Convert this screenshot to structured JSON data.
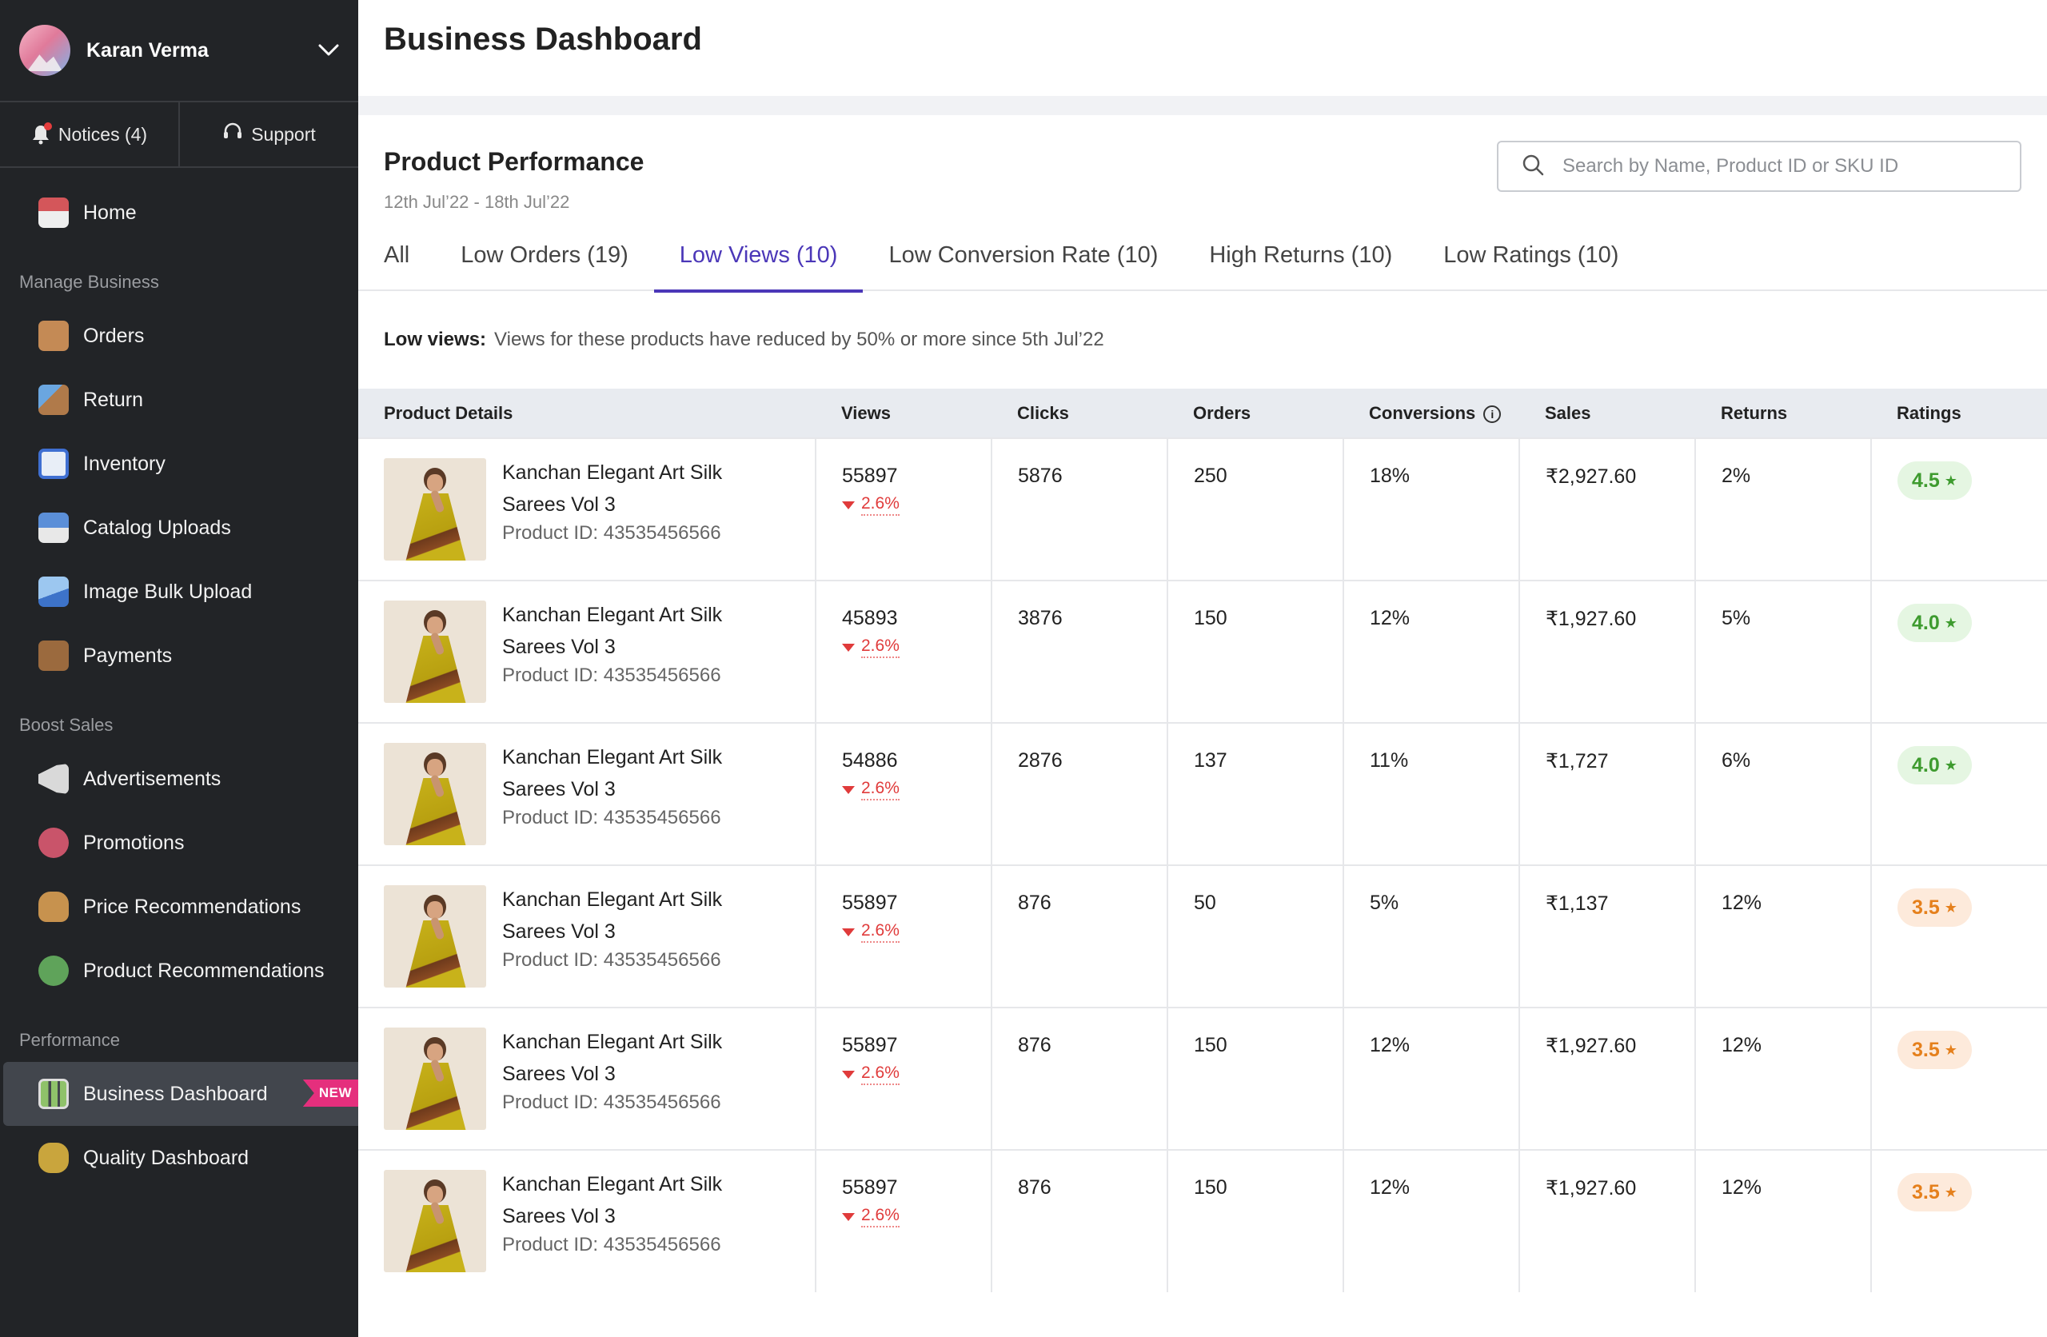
{
  "user": {
    "name": "Karan Verma"
  },
  "quick": {
    "notices": "Notices (4)",
    "support": "Support"
  },
  "nav": {
    "home": "Home",
    "section_manage": "Manage Business",
    "orders": "Orders",
    "return": "Return",
    "inventory": "Inventory",
    "catalog_uploads": "Catalog Uploads",
    "image_bulk_upload": "Image Bulk Upload",
    "payments": "Payments",
    "section_boost": "Boost Sales",
    "advertisements": "Advertisements",
    "promotions": "Promotions",
    "price_recommendations": "Price Recommendations",
    "product_recommendations": "Product Recommendations",
    "section_performance": "Performance",
    "business_dashboard": "Business Dashboard",
    "new_badge": "NEW",
    "quality_dashboard": "Quality Dashboard"
  },
  "page": {
    "title": "Business Dashboard"
  },
  "performance": {
    "title": "Product Performance",
    "date_range": "12th Jul’22 - 18th Jul’22",
    "search_placeholder": "Search by Name, Product ID or SKU ID"
  },
  "tabs": [
    "All",
    "Low Orders (19)",
    "Low Views (10)",
    "Low Conversion Rate (10)",
    "High Returns (10)",
    "Low Ratings (10)"
  ],
  "active_tab": "Low Views (10)",
  "note": {
    "label": "Low views:",
    "text": "Views for these products have reduced by 50% or more since 5th Jul’22"
  },
  "table": {
    "headers": [
      "Product Details",
      "Views",
      "Clicks",
      "Orders",
      "Conversions",
      "Sales",
      "Returns",
      "Ratings"
    ],
    "rows": [
      {
        "name": "Kanchan Elegant Art Silk Sarees Vol 3",
        "product_id": "Product ID: 43535456566",
        "views": "55897",
        "views_delta": "2.6%",
        "clicks": "5876",
        "orders": "250",
        "conversions": "18%",
        "sales": "₹2,927.60",
        "returns": "2%",
        "rating": "4.5",
        "rating_level": "good"
      },
      {
        "name": "Kanchan Elegant Art Silk Sarees Vol 3",
        "product_id": "Product ID: 43535456566",
        "views": "45893",
        "views_delta": "2.6%",
        "clicks": "3876",
        "orders": "150",
        "conversions": "12%",
        "sales": "₹1,927.60",
        "returns": "5%",
        "rating": "4.0",
        "rating_level": "good"
      },
      {
        "name": "Kanchan Elegant Art Silk Sarees Vol 3",
        "product_id": "Product ID: 43535456566",
        "views": "54886",
        "views_delta": "2.6%",
        "clicks": "2876",
        "orders": "137",
        "conversions": "11%",
        "sales": "₹1,727",
        "returns": "6%",
        "rating": "4.0",
        "rating_level": "good"
      },
      {
        "name": "Kanchan Elegant Art Silk Sarees Vol 3",
        "product_id": "Product ID: 43535456566",
        "views": "55897",
        "views_delta": "2.6%",
        "clicks": "876",
        "orders": "50",
        "conversions": "5%",
        "sales": "₹1,137",
        "returns": "12%",
        "rating": "3.5",
        "rating_level": "mid"
      },
      {
        "name": "Kanchan Elegant Art Silk Sarees Vol 3",
        "product_id": "Product ID: 43535456566",
        "views": "55897",
        "views_delta": "2.6%",
        "clicks": "876",
        "orders": "150",
        "conversions": "12%",
        "sales": "₹1,927.60",
        "returns": "12%",
        "rating": "3.5",
        "rating_level": "mid"
      },
      {
        "name": "Kanchan Elegant Art Silk Sarees Vol 3",
        "product_id": "Product ID: 43535456566",
        "views": "55897",
        "views_delta": "2.6%",
        "clicks": "876",
        "orders": "150",
        "conversions": "12%",
        "sales": "₹1,927.60",
        "returns": "12%",
        "rating": "3.5",
        "rating_level": "mid"
      }
    ]
  },
  "colors": {
    "accent": "#4b37b8",
    "sidebar_bg": "#222427",
    "delta_red": "#e03b3b",
    "rating_good": "#3e9b2f",
    "rating_mid": "#e5801c",
    "new_badge": "#e52f7d"
  }
}
